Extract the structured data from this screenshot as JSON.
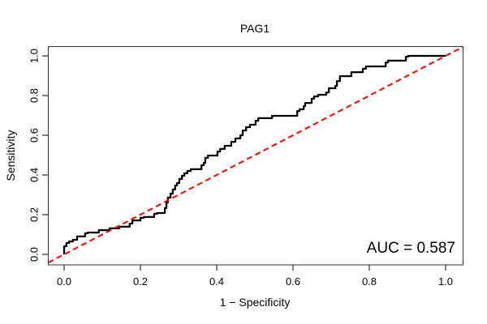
{
  "chart_data": {
    "type": "line",
    "subtype": "roc-step-curve",
    "title": "PAG1",
    "xlabel": "1 − Specificity",
    "ylabel": "Sensitivity",
    "xlim": [
      0,
      1
    ],
    "ylim": [
      0,
      1
    ],
    "x_ticks": [
      0.0,
      0.2,
      0.4,
      0.6,
      0.8,
      1.0
    ],
    "y_ticks": [
      0.0,
      0.2,
      0.4,
      0.6,
      0.8,
      1.0
    ],
    "x_tick_labels": [
      "0.0",
      "0.2",
      "0.4",
      "0.6",
      "0.8",
      "1.0"
    ],
    "y_tick_labels": [
      "0.0",
      "0.2",
      "0.4",
      "0.6",
      "0.8",
      "1.0"
    ],
    "grid": false,
    "legend": "none",
    "auc": 0.587,
    "annotation": {
      "text": "AUC = 0.587",
      "anchor": "bottom-right"
    },
    "series": [
      {
        "name": "ROC curve",
        "style": "step",
        "color": "#000000",
        "line_width": 2.3,
        "points": [
          [
            0,
            0
          ],
          [
            0,
            0.041
          ],
          [
            0.006,
            0.041
          ],
          [
            0.006,
            0.057
          ],
          [
            0.013,
            0.057
          ],
          [
            0.013,
            0.065
          ],
          [
            0.023,
            0.065
          ],
          [
            0.023,
            0.073
          ],
          [
            0.034,
            0.073
          ],
          [
            0.034,
            0.09
          ],
          [
            0.055,
            0.09
          ],
          [
            0.055,
            0.106
          ],
          [
            0.062,
            0.106
          ],
          [
            0.062,
            0.11
          ],
          [
            0.091,
            0.11
          ],
          [
            0.091,
            0.122
          ],
          [
            0.119,
            0.122
          ],
          [
            0.119,
            0.131
          ],
          [
            0.145,
            0.131
          ],
          [
            0.145,
            0.139
          ],
          [
            0.172,
            0.139
          ],
          [
            0.172,
            0.155
          ],
          [
            0.179,
            0.155
          ],
          [
            0.179,
            0.171
          ],
          [
            0.2,
            0.171
          ],
          [
            0.2,
            0.184
          ],
          [
            0.209,
            0.184
          ],
          [
            0.209,
            0.188
          ],
          [
            0.236,
            0.188
          ],
          [
            0.236,
            0.204
          ],
          [
            0.243,
            0.204
          ],
          [
            0.243,
            0.208
          ],
          [
            0.264,
            0.208
          ],
          [
            0.264,
            0.233
          ],
          [
            0.268,
            0.233
          ],
          [
            0.268,
            0.261
          ],
          [
            0.272,
            0.261
          ],
          [
            0.272,
            0.286
          ],
          [
            0.279,
            0.286
          ],
          [
            0.279,
            0.306
          ],
          [
            0.285,
            0.306
          ],
          [
            0.285,
            0.327
          ],
          [
            0.291,
            0.327
          ],
          [
            0.291,
            0.347
          ],
          [
            0.296,
            0.347
          ],
          [
            0.296,
            0.359
          ],
          [
            0.302,
            0.359
          ],
          [
            0.302,
            0.38
          ],
          [
            0.309,
            0.38
          ],
          [
            0.309,
            0.396
          ],
          [
            0.315,
            0.396
          ],
          [
            0.315,
            0.408
          ],
          [
            0.323,
            0.408
          ],
          [
            0.323,
            0.42
          ],
          [
            0.332,
            0.42
          ],
          [
            0.332,
            0.429
          ],
          [
            0.36,
            0.429
          ],
          [
            0.36,
            0.449
          ],
          [
            0.366,
            0.449
          ],
          [
            0.366,
            0.461
          ],
          [
            0.37,
            0.461
          ],
          [
            0.37,
            0.486
          ],
          [
            0.377,
            0.486
          ],
          [
            0.377,
            0.498
          ],
          [
            0.402,
            0.498
          ],
          [
            0.402,
            0.518
          ],
          [
            0.409,
            0.518
          ],
          [
            0.409,
            0.531
          ],
          [
            0.421,
            0.531
          ],
          [
            0.421,
            0.547
          ],
          [
            0.438,
            0.547
          ],
          [
            0.438,
            0.567
          ],
          [
            0.449,
            0.567
          ],
          [
            0.449,
            0.584
          ],
          [
            0.462,
            0.584
          ],
          [
            0.462,
            0.6
          ],
          [
            0.468,
            0.6
          ],
          [
            0.468,
            0.624
          ],
          [
            0.477,
            0.624
          ],
          [
            0.477,
            0.641
          ],
          [
            0.487,
            0.641
          ],
          [
            0.487,
            0.653
          ],
          [
            0.502,
            0.653
          ],
          [
            0.502,
            0.673
          ],
          [
            0.509,
            0.673
          ],
          [
            0.509,
            0.686
          ],
          [
            0.545,
            0.686
          ],
          [
            0.545,
            0.698
          ],
          [
            0.611,
            0.698
          ],
          [
            0.611,
            0.722
          ],
          [
            0.617,
            0.722
          ],
          [
            0.617,
            0.731
          ],
          [
            0.628,
            0.731
          ],
          [
            0.628,
            0.747
          ],
          [
            0.632,
            0.747
          ],
          [
            0.632,
            0.763
          ],
          [
            0.649,
            0.763
          ],
          [
            0.649,
            0.784
          ],
          [
            0.655,
            0.784
          ],
          [
            0.655,
            0.796
          ],
          [
            0.666,
            0.796
          ],
          [
            0.666,
            0.804
          ],
          [
            0.687,
            0.804
          ],
          [
            0.687,
            0.816
          ],
          [
            0.694,
            0.816
          ],
          [
            0.694,
            0.837
          ],
          [
            0.711,
            0.837
          ],
          [
            0.711,
            0.849
          ],
          [
            0.715,
            0.849
          ],
          [
            0.715,
            0.873
          ],
          [
            0.723,
            0.873
          ],
          [
            0.723,
            0.898
          ],
          [
            0.753,
            0.898
          ],
          [
            0.753,
            0.918
          ],
          [
            0.783,
            0.918
          ],
          [
            0.783,
            0.935
          ],
          [
            0.791,
            0.935
          ],
          [
            0.791,
            0.947
          ],
          [
            0.843,
            0.947
          ],
          [
            0.843,
            0.967
          ],
          [
            0.849,
            0.967
          ],
          [
            0.849,
            0.976
          ],
          [
            0.896,
            0.976
          ],
          [
            0.896,
            0.996
          ],
          [
            0.902,
            0.996
          ],
          [
            0.902,
            1
          ],
          [
            1,
            1
          ]
        ]
      },
      {
        "name": "chance diagonal",
        "style": "dashed",
        "color": "#ff0000",
        "line_width": 2,
        "extends_to_plot_edges": true,
        "points": [
          [
            0,
            0
          ],
          [
            1,
            1
          ]
        ]
      }
    ]
  },
  "colors": {
    "background": "#ffffff",
    "axis": "#000000",
    "curve": "#000000",
    "diagonal": "#ff0000"
  }
}
